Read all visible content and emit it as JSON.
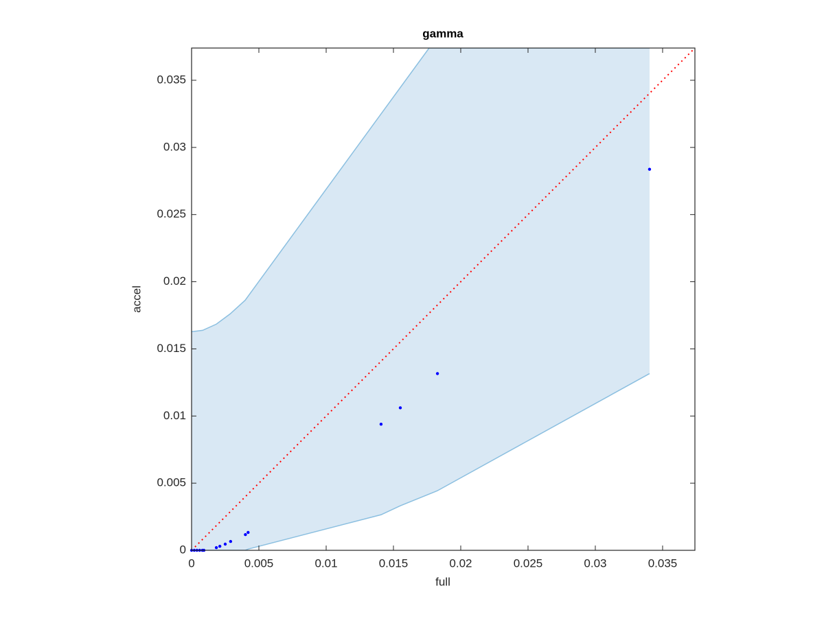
{
  "chart_data": {
    "type": "scatter",
    "title": "gamma",
    "x_label": "full",
    "y_label": "accel",
    "x": [
      0,
      0.0002,
      0.0004,
      0.0006,
      0.0008,
      0.00092,
      0.00184,
      0.0021,
      0.0025,
      0.0029,
      0.004,
      0.0042,
      0.01408,
      0.01551,
      0.01827,
      0.03403
    ],
    "y": [
      0,
      0,
      0,
      0,
      0,
      0,
      0.0002,
      0.0003,
      0.00046,
      0.00066,
      0.00117,
      0.00133,
      0.00939,
      0.01061,
      0.01316,
      0.02837
    ],
    "color": "#0000ff",
    "band": {
      "fill": "#d9e8f4",
      "edge_color": "#8bbfe0",
      "upper": {
        "x": [
          0,
          0.00082,
          0.00184,
          0.00286,
          0.00398,
          0.01765,
          0.03403
        ],
        "y": [
          0.01628,
          0.01638,
          0.01684,
          0.0176,
          0.01862,
          0.0374,
          0.0374
        ]
      },
      "lower": {
        "x": [
          0,
          0.00398,
          0.00423,
          0.01408,
          0.01551,
          0.01827,
          0.03403
        ],
        "y": [
          0,
          0,
          0.0001,
          0.00265,
          0.00332,
          0.00444,
          0.01316
        ]
      }
    },
    "identity_line": true,
    "identity_color": "#ff0000",
    "xlim": [
      0,
      0.0374
    ],
    "ylim": [
      0,
      0.0374
    ],
    "xticks": [
      0,
      0.005,
      0.01,
      0.015,
      0.02,
      0.025,
      0.03,
      0.035
    ],
    "yticks": [
      0,
      0.005,
      0.01,
      0.015,
      0.02,
      0.025,
      0.03,
      0.035
    ]
  }
}
